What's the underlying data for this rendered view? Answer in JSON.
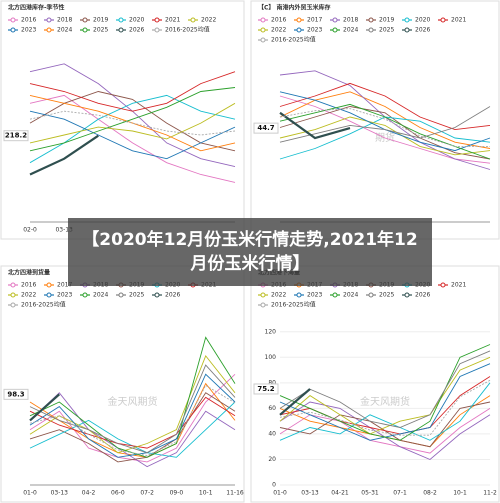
{
  "headline": "【2020年12月份玉米行情走势,2021年12月份玉米行情】",
  "chart_data": [
    {
      "type": "line",
      "title": "北方四港库存-季节性",
      "watermark": "",
      "categories": [
        "02-0",
        "03-13",
        null,
        null,
        null,
        null,
        null
      ],
      "ylim": [
        0,
        450
      ],
      "yticks": [],
      "series": [
        {
          "name": "2016",
          "color": "#e377c2",
          "values": [
            300,
            320,
            260,
            200,
            150,
            120,
            100
          ]
        },
        {
          "name": "2018",
          "color": "#9467bd",
          "values": [
            380,
            400,
            350,
            280,
            200,
            160,
            140
          ]
        },
        {
          "name": "2019",
          "color": "#8c564b",
          "values": [
            250,
            300,
            330,
            310,
            250,
            200,
            180
          ]
        },
        {
          "name": "2020",
          "color": "#17becf",
          "values": [
            150,
            200,
            260,
            300,
            320,
            280,
            260
          ]
        },
        {
          "name": "2021",
          "color": "#d62728",
          "values": [
            350,
            330,
            300,
            280,
            300,
            350,
            380
          ]
        },
        {
          "name": "2022",
          "color": "#bcbd22",
          "values": [
            200,
            220,
            240,
            230,
            210,
            250,
            300
          ]
        },
        {
          "name": "2023",
          "color": "#1f77b4",
          "values": [
            280,
            260,
            220,
            180,
            160,
            200,
            240
          ]
        },
        {
          "name": "2024",
          "color": "#ff7f0e",
          "values": [
            320,
            300,
            280,
            250,
            220,
            180,
            200
          ]
        },
        {
          "name": "2025",
          "color": "#2ca02c",
          "values": [
            180,
            200,
            230,
            260,
            290,
            330,
            340
          ]
        },
        {
          "name": "2026",
          "color": "#2f4f4f",
          "values": [
            120,
            160,
            218.2,
            null,
            null,
            null,
            null
          ],
          "value_labels": [
            null,
            null,
            "218.2",
            null,
            null,
            null,
            null
          ]
        },
        {
          "name": "2016-2025均值",
          "color": "#aaaaaa",
          "values": [
            260,
            280,
            270,
            250,
            230,
            220,
            230
          ]
        }
      ]
    },
    {
      "type": "line",
      "title": "【C】 南港内外贸玉米库存",
      "watermark": "期货",
      "categories": [
        null,
        null,
        null,
        null,
        null,
        null,
        null
      ],
      "ylim": [
        0,
        80
      ],
      "yticks": [],
      "series": [
        {
          "name": "2016",
          "color": "#e377c2",
          "values": [
            60,
            55,
            48,
            40,
            35,
            30,
            28
          ]
        },
        {
          "name": "2017",
          "color": "#ff7f0e",
          "values": [
            50,
            58,
            62,
            55,
            45,
            38,
            35
          ]
        },
        {
          "name": "2018",
          "color": "#9467bd",
          "values": [
            70,
            72,
            65,
            50,
            38,
            30,
            25
          ]
        },
        {
          "name": "2019",
          "color": "#8c564b",
          "values": [
            45,
            50,
            55,
            52,
            40,
            33,
            30
          ]
        },
        {
          "name": "2020",
          "color": "#17becf",
          "values": [
            30,
            35,
            42,
            50,
            48,
            40,
            38
          ]
        },
        {
          "name": "2021",
          "color": "#d62728",
          "values": [
            55,
            60,
            66,
            60,
            50,
            44,
            46
          ]
        },
        {
          "name": "2022",
          "color": "#bcbd22",
          "values": [
            40,
            44,
            50,
            46,
            36,
            32,
            34
          ]
        },
        {
          "name": "2023",
          "color": "#1f77b4",
          "values": [
            62,
            58,
            52,
            44,
            38,
            34,
            40
          ]
        },
        {
          "name": "2024",
          "color": "#2ca02c",
          "values": [
            48,
            52,
            56,
            50,
            42,
            36,
            30
          ]
        },
        {
          "name": "2025",
          "color": "#7f7f7f",
          "values": [
            38,
            42,
            46,
            44,
            40,
            45,
            55
          ]
        },
        {
          "name": "2026",
          "color": "#2f4f4f",
          "values": [
            52,
            40,
            44.7,
            null,
            null,
            null,
            null
          ],
          "value_labels": [
            null,
            null,
            "44.7",
            null,
            null,
            null,
            null
          ]
        },
        {
          "name": "2016-2025均值",
          "color": "#aaaaaa",
          "values": [
            50,
            53,
            54,
            49,
            41,
            36,
            36
          ]
        }
      ]
    },
    {
      "type": "line",
      "title": "北方四港到货量",
      "watermark": "金天风期货",
      "categories": [
        "01-0",
        "03-13",
        "04-2",
        "06-0",
        "07-2",
        "09-0",
        "10-1",
        "11-16"
      ],
      "ylim": [
        0,
        180
      ],
      "yticks": [],
      "series": [
        {
          "name": "2016",
          "color": "#e377c2",
          "values": [
            60,
            80,
            40,
            30,
            25,
            40,
            90,
            120
          ]
        },
        {
          "name": "2017",
          "color": "#ff7f0e",
          "values": [
            90,
            70,
            50,
            35,
            30,
            45,
            110,
            70
          ]
        },
        {
          "name": "2018",
          "color": "#9467bd",
          "values": [
            70,
            100,
            60,
            40,
            20,
            35,
            80,
            60
          ]
        },
        {
          "name": "2019",
          "color": "#8c564b",
          "values": [
            50,
            60,
            45,
            25,
            30,
            50,
            100,
            80
          ]
        },
        {
          "name": "2020",
          "color": "#17becf",
          "values": [
            40,
            55,
            70,
            50,
            35,
            30,
            60,
            90
          ]
        },
        {
          "name": "2021",
          "color": "#d62728",
          "values": [
            80,
            65,
            55,
            45,
            40,
            55,
            95,
            75
          ]
        },
        {
          "name": "2022",
          "color": "#bcbd22",
          "values": [
            55,
            75,
            60,
            35,
            45,
            60,
            140,
            100
          ]
        },
        {
          "name": "2023",
          "color": "#1f77b4",
          "values": [
            65,
            85,
            50,
            30,
            35,
            50,
            120,
            90
          ]
        },
        {
          "name": "2024",
          "color": "#2ca02c",
          "values": [
            75,
            90,
            65,
            40,
            30,
            45,
            160,
            110
          ]
        },
        {
          "name": "2025",
          "color": "#7f7f7f",
          "values": [
            85,
            70,
            60,
            45,
            35,
            55,
            130,
            95
          ]
        },
        {
          "name": "2026",
          "color": "#2f4f4f",
          "values": [
            70,
            98.3,
            null,
            null,
            null,
            null,
            null,
            null
          ],
          "value_labels": [
            null,
            "98.3",
            null,
            null,
            null,
            null,
            null,
            null
          ]
        },
        {
          "name": "2016-2025均值",
          "color": "#aaaaaa",
          "values": [
            67,
            75,
            55,
            38,
            32,
            47,
            108,
            89
          ]
        }
      ]
    },
    {
      "type": "line",
      "title": "北方四港下海量",
      "watermark": "金天风期货",
      "categories": [
        "01-0",
        "03-13",
        "04-21",
        "05-31",
        "07-1",
        "08-2",
        "10-1",
        "11-2"
      ],
      "ylim": [
        0,
        130
      ],
      "yticks": [
        0,
        20,
        40,
        60,
        80,
        100,
        120
      ],
      "series": [
        {
          "name": "2016",
          "color": "#e377c2",
          "values": [
            40,
            55,
            50,
            35,
            30,
            25,
            45,
            60
          ]
        },
        {
          "name": "2017",
          "color": "#ff7f0e",
          "values": [
            60,
            50,
            45,
            40,
            35,
            30,
            55,
            70
          ]
        },
        {
          "name": "2018",
          "color": "#9467bd",
          "values": [
            50,
            65,
            60,
            45,
            30,
            20,
            40,
            55
          ]
        },
        {
          "name": "2019",
          "color": "#8c564b",
          "values": [
            45,
            40,
            55,
            50,
            35,
            30,
            60,
            65
          ]
        },
        {
          "name": "2020",
          "color": "#17becf",
          "values": [
            35,
            45,
            40,
            55,
            45,
            35,
            50,
            80
          ]
        },
        {
          "name": "2021",
          "color": "#d62728",
          "values": [
            55,
            60,
            50,
            45,
            40,
            45,
            70,
            85
          ]
        },
        {
          "name": "2022",
          "color": "#bcbd22",
          "values": [
            50,
            70,
            55,
            40,
            50,
            55,
            90,
            100
          ]
        },
        {
          "name": "2023",
          "color": "#1f77b4",
          "values": [
            65,
            55,
            45,
            35,
            40,
            45,
            85,
            95
          ]
        },
        {
          "name": "2024",
          "color": "#2ca02c",
          "values": [
            70,
            60,
            50,
            40,
            35,
            50,
            100,
            110
          ]
        },
        {
          "name": "2025",
          "color": "#7f7f7f",
          "values": [
            60,
            75,
            65,
            50,
            45,
            55,
            95,
            105
          ]
        },
        {
          "name": "2026",
          "color": "#2f4f4f",
          "values": [
            55,
            75.2,
            null,
            null,
            null,
            null,
            null,
            null
          ],
          "value_labels": [
            null,
            "75.2",
            null,
            null,
            null,
            null,
            null,
            null
          ]
        },
        {
          "name": "2016-2025均值",
          "color": "#aaaaaa",
          "values": [
            53,
            57,
            51,
            43,
            39,
            39,
            69,
            82
          ]
        }
      ]
    }
  ]
}
